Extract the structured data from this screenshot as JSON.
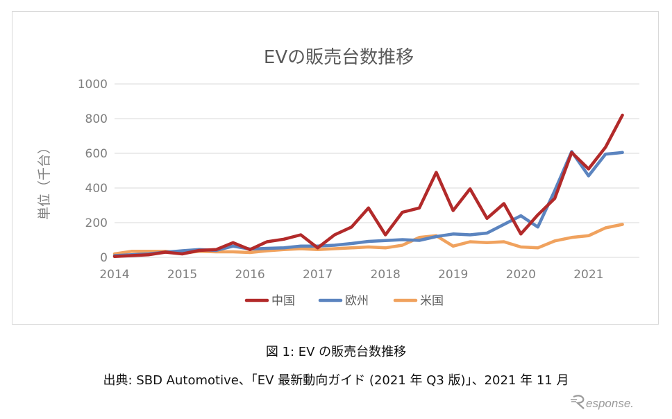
{
  "figure_caption": "図 1: EV の販売台数推移",
  "source_caption": "出典: SBD Automotive、「EV 最新動向ガイド (2021 年 Q3 版)」、2021 年 11 月",
  "watermark_text": "Response.",
  "colors": {
    "中国": "#b22a2a",
    "欧州": "#5b84bf",
    "米国": "#f0a25e",
    "grid": "#d9d9d9",
    "axis_text": "#7f7f7f"
  },
  "chart_data": {
    "type": "line",
    "title": "EVの販売台数推移",
    "ylabel": "単位（千台）",
    "xlabel": "",
    "ylim": [
      0,
      1000
    ],
    "yticks": [
      0,
      200,
      400,
      600,
      800,
      1000
    ],
    "xlim": [
      2014,
      2021.75
    ],
    "xticks": [
      "2014",
      "2015",
      "2016",
      "2017",
      "2018",
      "2019",
      "2020",
      "2021"
    ],
    "legend_position": "bottom",
    "grid": true,
    "x": [
      2014.0,
      2014.25,
      2014.5,
      2014.75,
      2015.0,
      2015.25,
      2015.5,
      2015.75,
      2016.0,
      2016.25,
      2016.5,
      2016.75,
      2017.0,
      2017.25,
      2017.5,
      2017.75,
      2018.0,
      2018.25,
      2018.5,
      2018.75,
      2019.0,
      2019.25,
      2019.5,
      2019.75,
      2020.0,
      2020.25,
      2020.5,
      2020.75,
      2021.0,
      2021.25,
      2021.5
    ],
    "series": [
      {
        "name": "中国",
        "values": [
          5,
          10,
          15,
          30,
          20,
          40,
          45,
          85,
          45,
          90,
          105,
          130,
          55,
          130,
          175,
          285,
          130,
          260,
          285,
          490,
          270,
          395,
          225,
          310,
          135,
          245,
          340,
          605,
          510,
          635,
          820
        ]
      },
      {
        "name": "欧州",
        "values": [
          10,
          15,
          20,
          30,
          38,
          45,
          40,
          65,
          48,
          52,
          55,
          65,
          65,
          70,
          80,
          92,
          97,
          102,
          98,
          120,
          135,
          130,
          140,
          190,
          240,
          175,
          385,
          610,
          470,
          595,
          605
        ]
      },
      {
        "name": "米国",
        "values": [
          20,
          35,
          35,
          35,
          25,
          35,
          32,
          32,
          28,
          38,
          45,
          50,
          45,
          50,
          55,
          60,
          55,
          70,
          115,
          125,
          65,
          90,
          85,
          90,
          60,
          55,
          95,
          115,
          125,
          170,
          190
        ]
      }
    ]
  }
}
